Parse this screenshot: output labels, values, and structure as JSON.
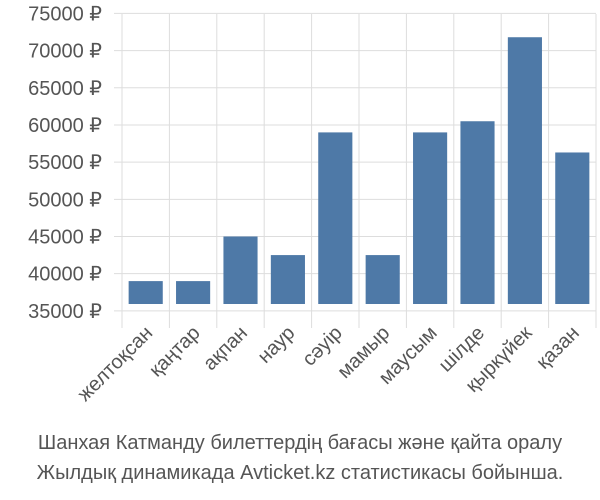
{
  "chart_data": {
    "type": "bar",
    "categories": [
      "желтоқсан",
      "қаңтар",
      "ақпан",
      "наур",
      "сәуір",
      "мамыр",
      "маусым",
      "шілде",
      "қыркүйек",
      "қазан"
    ],
    "values": [
      39000,
      39000,
      45000,
      42500,
      59000,
      42500,
      59000,
      60500,
      71800,
      56300
    ],
    "currency_suffix": " ₽",
    "yticks": [
      35000,
      40000,
      45000,
      50000,
      55000,
      60000,
      65000,
      70000,
      75000
    ],
    "ylim": [
      33500,
      76000
    ],
    "grid": true,
    "bar_color": "#4e79a7",
    "grid_color": "#dddddd",
    "text_color": "#555555"
  },
  "caption": {
    "line1": "Шанхая Катманду билеттердің бағасы және қайта оралу",
    "line2": "Жылдық динамикада Avticket.kz статистикасы бойынша."
  }
}
